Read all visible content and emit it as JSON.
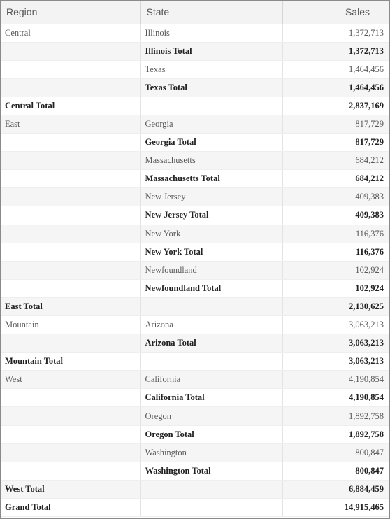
{
  "columns": {
    "region": "Region",
    "state": "State",
    "sales": "Sales"
  },
  "rows": [
    {
      "type": "detail",
      "region": "Central",
      "state": "Illinois",
      "sales": "1,372,713"
    },
    {
      "type": "state-total",
      "region": "",
      "state": "Illinois Total",
      "sales": "1,372,713"
    },
    {
      "type": "detail",
      "region": "",
      "state": "Texas",
      "sales": "1,464,456"
    },
    {
      "type": "state-total",
      "region": "",
      "state": "Texas Total",
      "sales": "1,464,456"
    },
    {
      "type": "region-total",
      "region": "Central Total",
      "state": "",
      "sales": "2,837,169"
    },
    {
      "type": "detail",
      "region": "East",
      "state": "Georgia",
      "sales": "817,729"
    },
    {
      "type": "state-total",
      "region": "",
      "state": "Georgia Total",
      "sales": "817,729"
    },
    {
      "type": "detail",
      "region": "",
      "state": "Massachusetts",
      "sales": "684,212"
    },
    {
      "type": "state-total",
      "region": "",
      "state": "Massachusetts Total",
      "sales": "684,212"
    },
    {
      "type": "detail",
      "region": "",
      "state": "New Jersey",
      "sales": "409,383"
    },
    {
      "type": "state-total",
      "region": "",
      "state": "New Jersey Total",
      "sales": "409,383"
    },
    {
      "type": "detail",
      "region": "",
      "state": "New York",
      "sales": "116,376"
    },
    {
      "type": "state-total",
      "region": "",
      "state": "New York Total",
      "sales": "116,376"
    },
    {
      "type": "detail",
      "region": "",
      "state": "Newfoundland",
      "sales": "102,924"
    },
    {
      "type": "state-total",
      "region": "",
      "state": "Newfoundland Total",
      "sales": "102,924"
    },
    {
      "type": "region-total",
      "region": "East Total",
      "state": "",
      "sales": "2,130,625"
    },
    {
      "type": "detail",
      "region": "Mountain",
      "state": "Arizona",
      "sales": "3,063,213"
    },
    {
      "type": "state-total",
      "region": "",
      "state": "Arizona Total",
      "sales": "3,063,213"
    },
    {
      "type": "region-total",
      "region": "Mountain Total",
      "state": "",
      "sales": "3,063,213"
    },
    {
      "type": "detail",
      "region": "West",
      "state": "California",
      "sales": "4,190,854"
    },
    {
      "type": "state-total",
      "region": "",
      "state": "California Total",
      "sales": "4,190,854"
    },
    {
      "type": "detail",
      "region": "",
      "state": "Oregon",
      "sales": "1,892,758"
    },
    {
      "type": "state-total",
      "region": "",
      "state": "Oregon Total",
      "sales": "1,892,758"
    },
    {
      "type": "detail",
      "region": "",
      "state": "Washington",
      "sales": "800,847"
    },
    {
      "type": "state-total",
      "region": "",
      "state": "Washington Total",
      "sales": "800,847"
    },
    {
      "type": "region-total",
      "region": "West Total",
      "state": "",
      "sales": "6,884,459"
    },
    {
      "type": "grand-total",
      "region": "Grand Total",
      "state": "",
      "sales": "14,915,465"
    }
  ]
}
